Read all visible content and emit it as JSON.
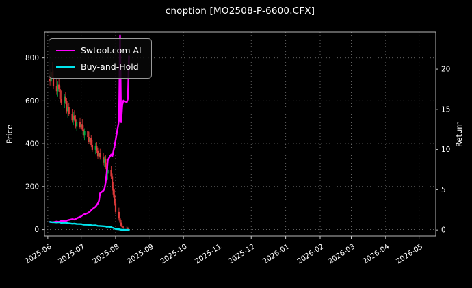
{
  "chart_data": {
    "type": "mixed",
    "subtype": [
      "candlestick",
      "line"
    ],
    "title": "cnoption [MO2508-P-6600.CFX]",
    "background": "#000000",
    "grid": true,
    "left_axis": {
      "label": "Price",
      "ticks": [
        0,
        200,
        400,
        600,
        800
      ],
      "lim": [
        -30,
        920
      ]
    },
    "right_axis": {
      "label": "Return",
      "ticks": [
        0,
        5,
        10,
        15,
        20
      ],
      "lim": [
        -0.75,
        24.6
      ]
    },
    "x_axis": {
      "tick_labels": [
        "2025-06",
        "2025-07",
        "2025-08",
        "2025-09",
        "2025-10",
        "2025-11",
        "2025-12",
        "2026-01",
        "2026-02",
        "2026-03",
        "2026-04",
        "2026-05"
      ],
      "range": [
        "2025-05-29",
        "2026-05-16"
      ]
    },
    "legend": {
      "position": "upper-left",
      "entries": [
        {
          "label": "Swtool.com AI",
          "color": "#ff00ff"
        },
        {
          "label": "Buy-and-Hold",
          "color": "#00e5ee"
        }
      ]
    },
    "candles": {
      "axis": "left",
      "up_color": "#00a944",
      "down_color": "#e03a3a",
      "data": [
        [
          "2025-06-03",
          700,
          748,
          672,
          690
        ],
        [
          "2025-06-04",
          690,
          755,
          668,
          735
        ],
        [
          "2025-06-05",
          735,
          782,
          700,
          712
        ],
        [
          "2025-06-06",
          712,
          740,
          655,
          668
        ],
        [
          "2025-06-09",
          668,
          706,
          628,
          645
        ],
        [
          "2025-06-10",
          645,
          690,
          618,
          676
        ],
        [
          "2025-06-11",
          676,
          702,
          640,
          655
        ],
        [
          "2025-06-12",
          655,
          672,
          596,
          608
        ],
        [
          "2025-06-13",
          608,
          648,
          580,
          592
        ],
        [
          "2025-06-16",
          592,
          630,
          566,
          618
        ],
        [
          "2025-06-17",
          618,
          640,
          585,
          598
        ],
        [
          "2025-06-18",
          598,
          614,
          542,
          552
        ],
        [
          "2025-06-19",
          552,
          586,
          522,
          570
        ],
        [
          "2025-06-20",
          570,
          592,
          530,
          540
        ],
        [
          "2025-06-23",
          540,
          562,
          498,
          508
        ],
        [
          "2025-06-24",
          508,
          548,
          486,
          532
        ],
        [
          "2025-06-25",
          532,
          556,
          504,
          514
        ],
        [
          "2025-06-26",
          514,
          534,
          472,
          482
        ],
        [
          "2025-06-27",
          482,
          514,
          460,
          500
        ],
        [
          "2025-06-30",
          500,
          522,
          468,
          476
        ],
        [
          "2025-07-01",
          476,
          506,
          450,
          492
        ],
        [
          "2025-07-02",
          492,
          515,
          458,
          466
        ],
        [
          "2025-07-03",
          466,
          486,
          428,
          438
        ],
        [
          "2025-07-04",
          438,
          472,
          416,
          458
        ],
        [
          "2025-07-07",
          458,
          478,
          424,
          432
        ],
        [
          "2025-07-08",
          432,
          456,
          398,
          408
        ],
        [
          "2025-07-09",
          408,
          444,
          392,
          426
        ],
        [
          "2025-07-10",
          426,
          440,
          384,
          394
        ],
        [
          "2025-07-11",
          394,
          420,
          362,
          372
        ],
        [
          "2025-07-14",
          372,
          404,
          352,
          388
        ],
        [
          "2025-07-15",
          388,
          408,
          356,
          366
        ],
        [
          "2025-07-16",
          366,
          382,
          330,
          342
        ],
        [
          "2025-07-17",
          342,
          372,
          322,
          358
        ],
        [
          "2025-07-18",
          358,
          376,
          326,
          336
        ],
        [
          "2025-07-21",
          336,
          356,
          300,
          312
        ],
        [
          "2025-07-22",
          312,
          342,
          292,
          328
        ],
        [
          "2025-07-23",
          328,
          346,
          282,
          292
        ],
        [
          "2025-07-24",
          292,
          312,
          250,
          262
        ],
        [
          "2025-07-25",
          262,
          292,
          232,
          278
        ],
        [
          "2025-07-28",
          278,
          296,
          236,
          246
        ],
        [
          "2025-07-29",
          246,
          262,
          182,
          192
        ],
        [
          "2025-07-30",
          192,
          222,
          150,
          162
        ],
        [
          "2025-07-31",
          162,
          186,
          112,
          122
        ],
        [
          "2025-08-01",
          122,
          142,
          72,
          82
        ],
        [
          "2025-08-04",
          82,
          102,
          42,
          52
        ],
        [
          "2025-08-05",
          52,
          72,
          22,
          32
        ],
        [
          "2025-08-06",
          32,
          46,
          12,
          18
        ],
        [
          "2025-08-07",
          18,
          28,
          6,
          10
        ],
        [
          "2025-08-08",
          10,
          18,
          4,
          8
        ],
        [
          "2025-08-11",
          8,
          14,
          3,
          6
        ],
        [
          "2025-08-12",
          6,
          12,
          2,
          5
        ]
      ]
    },
    "series": [
      {
        "name": "Swtool.com AI",
        "color": "#ff00ff",
        "axis": "right",
        "width": 2.4,
        "points": [
          [
            "2025-06-03",
            1.0
          ],
          [
            "2025-06-05",
            0.95
          ],
          [
            "2025-06-09",
            1.05
          ],
          [
            "2025-06-11",
            1.0
          ],
          [
            "2025-06-13",
            1.12
          ],
          [
            "2025-06-17",
            1.1
          ],
          [
            "2025-06-19",
            1.22
          ],
          [
            "2025-06-23",
            1.35
          ],
          [
            "2025-06-25",
            1.3
          ],
          [
            "2025-06-27",
            1.45
          ],
          [
            "2025-07-01",
            1.7
          ],
          [
            "2025-07-03",
            1.9
          ],
          [
            "2025-07-07",
            2.1
          ],
          [
            "2025-07-09",
            2.3
          ],
          [
            "2025-07-11",
            2.6
          ],
          [
            "2025-07-14",
            2.9
          ],
          [
            "2025-07-16",
            3.3
          ],
          [
            "2025-07-17",
            3.6
          ],
          [
            "2025-07-18",
            4.6
          ],
          [
            "2025-07-21",
            4.9
          ],
          [
            "2025-07-22",
            5.15
          ],
          [
            "2025-07-23",
            5.9
          ],
          [
            "2025-07-24",
            7.1
          ],
          [
            "2025-07-25",
            8.7
          ],
          [
            "2025-07-28",
            9.4
          ],
          [
            "2025-07-29",
            9.15
          ],
          [
            "2025-07-30",
            9.8
          ],
          [
            "2025-07-31",
            10.4
          ],
          [
            "2025-08-01",
            11.2
          ],
          [
            "2025-08-04",
            13.6
          ],
          [
            "2025-08-05",
            24.2
          ],
          [
            "2025-08-06",
            13.4
          ],
          [
            "2025-08-07",
            15.6
          ],
          [
            "2025-08-08",
            16.1
          ],
          [
            "2025-08-11",
            15.9
          ],
          [
            "2025-08-12",
            16.3
          ],
          [
            "2025-08-13",
            21.6
          ]
        ]
      },
      {
        "name": "Buy-and-Hold",
        "color": "#00e5ee",
        "axis": "right",
        "width": 2.4,
        "points": [
          [
            "2025-06-03",
            1.0
          ],
          [
            "2025-06-05",
            0.97
          ],
          [
            "2025-06-09",
            0.93
          ],
          [
            "2025-06-11",
            0.96
          ],
          [
            "2025-06-13",
            0.88
          ],
          [
            "2025-06-17",
            0.9
          ],
          [
            "2025-06-19",
            0.84
          ],
          [
            "2025-06-23",
            0.76
          ],
          [
            "2025-06-25",
            0.79
          ],
          [
            "2025-06-27",
            0.73
          ],
          [
            "2025-07-01",
            0.72
          ],
          [
            "2025-07-03",
            0.65
          ],
          [
            "2025-07-07",
            0.64
          ],
          [
            "2025-07-09",
            0.62
          ],
          [
            "2025-07-11",
            0.55
          ],
          [
            "2025-07-14",
            0.57
          ],
          [
            "2025-07-16",
            0.5
          ],
          [
            "2025-07-18",
            0.49
          ],
          [
            "2025-07-21",
            0.46
          ],
          [
            "2025-07-23",
            0.43
          ],
          [
            "2025-07-24",
            0.38
          ],
          [
            "2025-07-25",
            0.41
          ],
          [
            "2025-07-28",
            0.36
          ],
          [
            "2025-07-29",
            0.28
          ],
          [
            "2025-07-30",
            0.24
          ],
          [
            "2025-07-31",
            0.18
          ],
          [
            "2025-08-01",
            0.12
          ],
          [
            "2025-08-04",
            0.08
          ],
          [
            "2025-08-05",
            0.05
          ],
          [
            "2025-08-06",
            0.03
          ],
          [
            "2025-08-07",
            0.015
          ],
          [
            "2025-08-08",
            0.012
          ],
          [
            "2025-08-11",
            0.009
          ],
          [
            "2025-08-12",
            0.007
          ],
          [
            "2025-08-13",
            0.007
          ]
        ]
      }
    ]
  }
}
